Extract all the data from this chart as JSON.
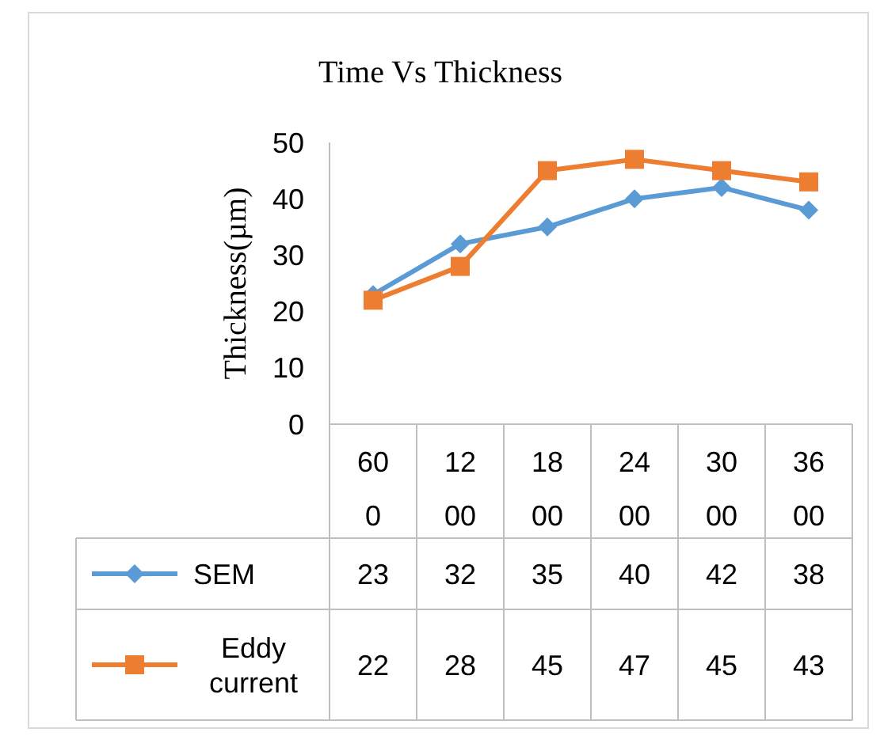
{
  "chart_data": {
    "type": "line",
    "title": "Time Vs Thickness",
    "ylabel": "Thickness(µm)",
    "categories": [
      "600",
      "1200",
      "1800",
      "2400",
      "3000",
      "3600"
    ],
    "series": [
      {
        "name": "SEM",
        "color": "#5b9bd5",
        "marker": "diamond",
        "values": [
          23,
          32,
          35,
          40,
          42,
          38
        ]
      },
      {
        "name": "Eddy current",
        "color": "#ed7d31",
        "marker": "square",
        "values": [
          22,
          28,
          45,
          47,
          45,
          43
        ]
      }
    ],
    "ylim": [
      0,
      50
    ],
    "yticks": [
      0,
      10,
      20,
      30,
      40,
      50
    ],
    "grid": false,
    "legend": "bottom",
    "data_labels": true,
    "line_style": "solid"
  }
}
